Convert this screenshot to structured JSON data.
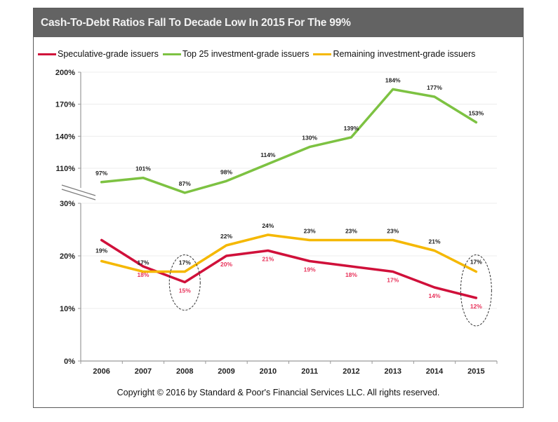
{
  "chart_data": {
    "type": "line",
    "title": "Cash-To-Debt  Ratios  Fall To Decade Low In 2015  For The 99%",
    "xlabel": "",
    "ylabel": "",
    "categories": [
      "2006",
      "2007",
      "2008",
      "2009",
      "2010",
      "2011",
      "2012",
      "2013",
      "2014",
      "2015"
    ],
    "y_axis": {
      "broken": true,
      "lower_segment": {
        "range": [
          0,
          30
        ],
        "ticks": [
          0,
          10,
          20,
          30
        ],
        "tick_labels": [
          "0%",
          "10%",
          "20%",
          "30%"
        ]
      },
      "upper_segment": {
        "range": [
          80,
          200
        ],
        "ticks": [
          110,
          140,
          170,
          200
        ],
        "tick_labels": [
          "110%",
          "140%",
          "170%",
          "200%"
        ]
      }
    },
    "grid": true,
    "legend_position": "top",
    "series": [
      {
        "name": "Speculative-grade issuers",
        "color": "#d0103a",
        "segment": "lower",
        "values": [
          23,
          18,
          15,
          20,
          21,
          19,
          18,
          17,
          14,
          12
        ],
        "labels": [
          "",
          "18%",
          "15%",
          "20%",
          "21%",
          "19%",
          "18%",
          "17%",
          "14%",
          "12%"
        ],
        "label_color": "#e8325a"
      },
      {
        "name": "Top 25 investment-grade issuers",
        "color": "#7dc242",
        "segment": "upper",
        "values": [
          97,
          101,
          87,
          98,
          114,
          130,
          139,
          184,
          177,
          153
        ],
        "labels": [
          "97%",
          "101%",
          "87%",
          "98%",
          "114%",
          "130%",
          "139%",
          "184%",
          "177%",
          "153%"
        ],
        "label_color": "#222222"
      },
      {
        "name": "Remaining investment-grade issuers",
        "color": "#f5b800",
        "segment": "lower",
        "values": [
          19,
          17,
          17,
          22,
          24,
          23,
          23,
          23,
          21,
          17
        ],
        "labels": [
          "19%",
          "17%",
          "17%",
          "22%",
          "24%",
          "23%",
          "23%",
          "23%",
          "21%",
          "17%"
        ],
        "label_color": "#222222"
      }
    ],
    "annotations": [
      {
        "type": "dashed-ellipse",
        "category": "2008"
      },
      {
        "type": "dashed-ellipse",
        "category": "2015"
      }
    ],
    "footnote": "Copyright © 2016 by Standard & Poor's Financial Services LLC. All rights reserved."
  },
  "header": {
    "title": "Cash-To-Debt  Ratios  Fall To Decade Low In 2015  For The 99%"
  },
  "legend": {
    "items": [
      {
        "label": "Speculative-grade issuers",
        "color": "#d0103a"
      },
      {
        "label": "Top 25 investment-grade issuers",
        "color": "#7dc242"
      },
      {
        "label": "Remaining investment-grade issuers",
        "color": "#f5b800"
      }
    ]
  },
  "footer": {
    "copyright": "Copyright © 2016 by Standard & Poor's Financial Services LLC. All rights reserved."
  }
}
